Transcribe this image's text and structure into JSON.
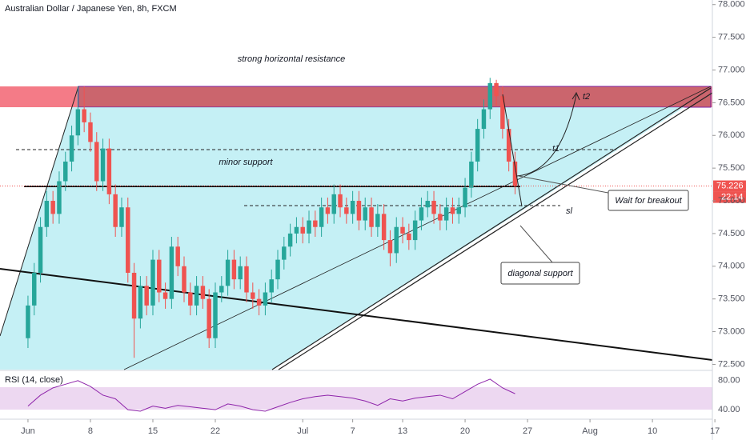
{
  "chart_data": {
    "type": "candlestick",
    "title": "Australian Dollar / Japanese Yen, 8h, FXCM",
    "x": [
      0,
      0.5,
      1,
      1.5,
      2,
      2.5,
      3,
      3.5,
      4,
      4.5,
      5,
      5.5,
      6,
      6.5,
      7,
      7.5,
      8,
      8.5,
      9,
      9.5,
      10,
      10.5,
      11,
      11.5,
      12,
      12.5,
      13,
      13.5,
      14,
      14.5,
      15,
      15.5,
      16,
      16.5,
      17,
      17.5,
      18,
      18.5,
      19,
      19.5,
      20,
      20.5,
      21,
      21.5,
      22,
      22.5,
      23,
      23.5,
      24,
      24.5,
      25,
      25.5,
      26,
      26.5,
      27,
      27.5,
      28,
      28.5,
      29,
      29.5,
      30,
      30.5,
      31,
      31.5,
      32,
      32.5,
      33,
      33.5,
      34,
      34.5,
      35,
      35.5,
      36,
      36.5,
      37,
      37.5,
      38,
      38.5,
      39
    ],
    "open": [
      72.9,
      73.4,
      73.9,
      74.6,
      75.0,
      74.8,
      75.3,
      75.6,
      76.0,
      76.4,
      76.2,
      75.9,
      75.3,
      75.8,
      75.1,
      74.6,
      74.9,
      73.9,
      73.2,
      73.7,
      73.4,
      74.1,
      73.6,
      73.5,
      74.3,
      74.0,
      73.6,
      73.4,
      73.7,
      73.5,
      72.9,
      73.6,
      73.7,
      74.1,
      73.8,
      74.0,
      73.6,
      73.5,
      73.4,
      73.6,
      73.8,
      74.1,
      74.3,
      74.5,
      74.6,
      74.5,
      74.7,
      74.6,
      74.9,
      74.8,
      75.1,
      74.9,
      74.8,
      75.0,
      74.7,
      74.9,
      74.6,
      74.8,
      74.4,
      74.2,
      74.6,
      74.5,
      74.4,
      74.7,
      74.9,
      75.0,
      74.8,
      74.7,
      74.9,
      74.8,
      74.9,
      75.2,
      75.6,
      76.1,
      76.4,
      76.8,
      76.6,
      76.1,
      75.6
    ],
    "high": [
      73.55,
      74.05,
      74.75,
      75.15,
      75.15,
      75.45,
      75.75,
      76.15,
      76.75,
      76.75,
      76.35,
      76.05,
      75.95,
      75.95,
      75.25,
      75.05,
      75.05,
      74.05,
      73.85,
      73.85,
      74.25,
      74.25,
      73.75,
      74.45,
      74.45,
      74.15,
      73.75,
      73.85,
      73.85,
      73.65,
      73.75,
      73.85,
      74.25,
      74.25,
      74.15,
      74.15,
      73.75,
      73.65,
      73.75,
      73.95,
      74.25,
      74.45,
      74.65,
      74.75,
      74.75,
      74.85,
      74.85,
      75.05,
      75.05,
      75.25,
      75.25,
      75.05,
      75.15,
      75.15,
      75.05,
      75.05,
      74.95,
      74.95,
      74.55,
      74.75,
      74.75,
      74.65,
      74.85,
      75.05,
      75.15,
      75.15,
      74.95,
      75.05,
      75.05,
      75.05,
      75.35,
      75.75,
      76.25,
      76.55,
      76.88,
      76.85,
      76.75,
      76.25,
      75.75
    ],
    "low": [
      72.75,
      73.25,
      73.75,
      74.45,
      74.65,
      74.65,
      75.15,
      75.45,
      75.85,
      76.05,
      75.75,
      75.15,
      75.15,
      74.95,
      74.45,
      74.45,
      73.75,
      72.6,
      73.05,
      73.25,
      73.25,
      73.45,
      73.35,
      73.35,
      73.85,
      73.45,
      73.25,
      73.25,
      73.35,
      72.75,
      72.75,
      73.45,
      73.55,
      73.65,
      73.65,
      73.45,
      73.35,
      73.25,
      73.25,
      73.45,
      73.65,
      73.95,
      74.15,
      74.35,
      74.35,
      74.35,
      74.45,
      74.45,
      74.65,
      74.65,
      74.75,
      74.65,
      74.65,
      74.55,
      74.55,
      74.45,
      74.45,
      74.25,
      74.0,
      74.05,
      74.35,
      74.25,
      74.25,
      74.55,
      74.75,
      74.65,
      74.55,
      74.55,
      74.65,
      74.65,
      74.75,
      75.05,
      75.45,
      75.95,
      76.25,
      76.45,
      75.95,
      75.45,
      75.1
    ],
    "close": [
      73.4,
      73.9,
      74.6,
      75.0,
      74.8,
      75.3,
      75.6,
      76.0,
      76.4,
      76.2,
      75.9,
      75.3,
      75.8,
      75.1,
      74.6,
      74.9,
      73.9,
      73.2,
      73.7,
      73.4,
      74.1,
      73.6,
      73.5,
      74.3,
      74.0,
      73.6,
      73.4,
      73.7,
      73.5,
      72.9,
      73.6,
      73.7,
      74.1,
      73.8,
      74.0,
      73.6,
      73.5,
      73.4,
      73.6,
      73.8,
      74.1,
      74.3,
      74.5,
      74.6,
      74.5,
      74.7,
      74.6,
      74.9,
      74.8,
      75.1,
      74.9,
      74.8,
      75.0,
      74.7,
      74.9,
      74.6,
      74.8,
      74.4,
      74.2,
      74.6,
      74.5,
      74.4,
      74.7,
      74.9,
      75.0,
      74.8,
      74.7,
      74.9,
      74.8,
      74.9,
      75.2,
      75.6,
      76.1,
      76.4,
      76.8,
      76.6,
      76.1,
      75.6,
      75.23
    ],
    "up_color": "#26a69a",
    "down_color": "#ef5350",
    "xlim": [
      -2.24,
      54.8
    ],
    "ylim": [
      72.42,
      78.07
    ],
    "xticks": [
      {
        "value": 0,
        "label": "Jun"
      },
      {
        "value": 5,
        "label": "8"
      },
      {
        "value": 10,
        "label": "15"
      },
      {
        "value": 15,
        "label": "22"
      },
      {
        "value": 22,
        "label": "Jul"
      },
      {
        "value": 26,
        "label": "7"
      },
      {
        "value": 30,
        "label": "13"
      },
      {
        "value": 35,
        "label": "20"
      },
      {
        "value": 40,
        "label": "27"
      },
      {
        "value": 45,
        "label": "Aug"
      },
      {
        "value": 50,
        "label": "10"
      },
      {
        "value": 55,
        "label": "17"
      }
    ],
    "yticks": [
      {
        "value": 72.5,
        "label": "72.500"
      },
      {
        "value": 73,
        "label": "73.000"
      },
      {
        "value": 73.5,
        "label": "73.500"
      },
      {
        "value": 74,
        "label": "74.000"
      },
      {
        "value": 74.5,
        "label": "74.500"
      },
      {
        "value": 75,
        "label": "75.000"
      },
      {
        "value": 75.5,
        "label": "75.500"
      },
      {
        "value": 76,
        "label": "76.000"
      },
      {
        "value": 76.5,
        "label": "76.500"
      },
      {
        "value": 77,
        "label": "77.000"
      },
      {
        "value": 77.5,
        "label": "77.500"
      },
      {
        "value": 78,
        "label": "78.000"
      }
    ],
    "current_price": 75.226,
    "countdown": "22:14",
    "annotations": {
      "resistance": "strong horizontal resistance",
      "minor_support": "minor support",
      "t1": "t1",
      "t2": "t2",
      "sl": "sl",
      "breakout": "Wait for breakout",
      "diagonal": "diagonal support"
    },
    "rsi": {
      "label": "RSI (14, close)",
      "color": "#8e24aa",
      "x": [
        0,
        1,
        2,
        3,
        4,
        5,
        6,
        7,
        8,
        9,
        10,
        11,
        12,
        13,
        14,
        15,
        16,
        17,
        18,
        19,
        20,
        21,
        22,
        23,
        24,
        25,
        26,
        27,
        28,
        29,
        30,
        31,
        32,
        33,
        34,
        35,
        36,
        37,
        38,
        39
      ],
      "values": [
        45,
        60,
        70,
        75,
        80,
        72,
        60,
        55,
        40,
        38,
        45,
        42,
        46,
        44,
        42,
        40,
        48,
        45,
        40,
        38,
        44,
        50,
        55,
        58,
        60,
        58,
        56,
        52,
        46,
        55,
        52,
        56,
        58,
        60,
        55,
        65,
        75,
        82,
        70,
        62
      ],
      "ylim": [
        27,
        94
      ],
      "yticks": [
        {
          "value": 80,
          "label": "80.00"
        },
        {
          "value": 40,
          "label": "40.00"
        }
      ]
    }
  }
}
